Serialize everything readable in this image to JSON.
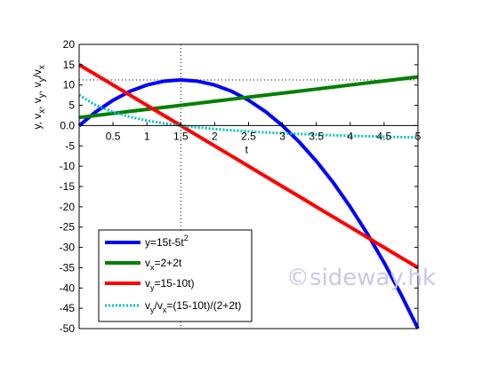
{
  "chart_data": {
    "type": "line",
    "title": "",
    "xlabel": "t",
    "ylabel": "y, v_x, v_y, v_y/v_x",
    "xlim": [
      0,
      5
    ],
    "ylim": [
      -50,
      20
    ],
    "x_ticks": [
      0.5,
      1,
      1.5,
      2,
      2.5,
      3,
      3.5,
      4,
      4.5,
      5
    ],
    "x_tick_labels": [
      "0.5",
      "1",
      "1.5",
      "2",
      "2.5",
      "3",
      "3.5",
      "4",
      "4.5",
      "5"
    ],
    "y_ticks": [
      20,
      15,
      10,
      5,
      0,
      -5,
      -10,
      -15,
      -20,
      -25,
      -30,
      -35,
      -40,
      -45,
      -50
    ],
    "y_tick_labels": [
      "20",
      "15",
      "10",
      "5",
      "0.0",
      "-5",
      "-10",
      "-15",
      "-20",
      "-25",
      "-30",
      "-35",
      "-40",
      "-45",
      "-50"
    ],
    "x_axis_at_y": 0,
    "grid": false,
    "reference_lines": {
      "x": 1.5,
      "y": 11.25
    },
    "legend_position": "bottom-left",
    "x": [
      0,
      0.25,
      0.5,
      0.75,
      1,
      1.25,
      1.5,
      1.75,
      2,
      2.25,
      2.5,
      2.75,
      3,
      3.25,
      3.5,
      3.75,
      4,
      4.25,
      4.5,
      4.75,
      5
    ],
    "series": [
      {
        "label": [
          "y=15t-5t",
          "2"
        ],
        "color": "#0000ff",
        "dash": "solid",
        "values": [
          0,
          3.44,
          6.25,
          8.44,
          10,
          10.94,
          11.25,
          10.94,
          10,
          8.44,
          6.25,
          3.44,
          0,
          -4.06,
          -8.75,
          -14.06,
          -20,
          -26.56,
          -33.75,
          -41.56,
          -50
        ]
      },
      {
        "label": [
          "v",
          "x",
          "=2+2t"
        ],
        "color": "#008000",
        "dash": "solid",
        "values": [
          2,
          2.5,
          3,
          3.5,
          4,
          4.5,
          5,
          5.5,
          6,
          6.5,
          7,
          7.5,
          8,
          8.5,
          9,
          9.5,
          10,
          10.5,
          11,
          11.5,
          12
        ]
      },
      {
        "label": [
          "v",
          "y",
          "=15-10t)"
        ],
        "color": "#ff0000",
        "dash": "solid",
        "values": [
          15,
          12.5,
          10,
          7.5,
          5,
          2.5,
          0,
          -2.5,
          -5,
          -7.5,
          -10,
          -12.5,
          -15,
          -17.5,
          -20,
          -22.5,
          -25,
          -27.5,
          -30,
          -32.5,
          -35
        ]
      },
      {
        "label": [
          "v",
          "y",
          "/v",
          "x",
          "=(15-10t)/(2+2t)"
        ],
        "color": "#00c0c0",
        "dash": "dotted",
        "values": [
          7.5,
          5,
          3.33,
          2.14,
          1.25,
          0.56,
          0,
          -0.45,
          -0.83,
          -1.15,
          -1.43,
          -1.67,
          -1.88,
          -2.06,
          -2.22,
          -2.37,
          -2.5,
          -2.62,
          -2.73,
          -2.83,
          -2.92
        ]
      }
    ]
  },
  "watermark": "©sideway.hk"
}
